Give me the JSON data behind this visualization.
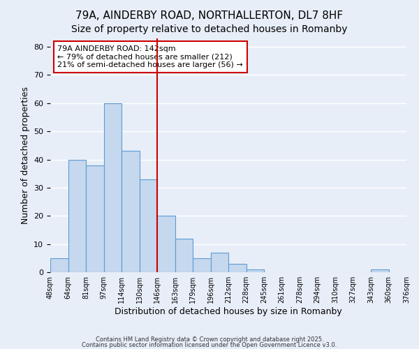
{
  "title": "79A, AINDERBY ROAD, NORTHALLERTON, DL7 8HF",
  "subtitle": "Size of property relative to detached houses in Romanby",
  "xlabel": "Distribution of detached houses by size in Romanby",
  "ylabel": "Number of detached properties",
  "bar_values": [
    5,
    40,
    38,
    60,
    43,
    33,
    20,
    12,
    5,
    7,
    3,
    1,
    0,
    0,
    0,
    0,
    0,
    0,
    1,
    0
  ],
  "bin_labels": [
    "48sqm",
    "64sqm",
    "81sqm",
    "97sqm",
    "114sqm",
    "130sqm",
    "146sqm",
    "163sqm",
    "179sqm",
    "196sqm",
    "212sqm",
    "228sqm",
    "245sqm",
    "261sqm",
    "278sqm",
    "294sqm",
    "310sqm",
    "327sqm",
    "343sqm",
    "360sqm",
    "376sqm"
  ],
  "bar_color": "#c5d8ed",
  "bar_edge_color": "#5b9bd5",
  "vline_x": 6,
  "vline_color": "#cc0000",
  "annotation_text": "79A AINDERBY ROAD: 142sqm\n← 79% of detached houses are smaller (212)\n21% of semi-detached houses are larger (56) →",
  "annotation_box_color": "#ffffff",
  "annotation_box_edge": "#cc0000",
  "ylim": [
    0,
    83
  ],
  "yticks": [
    0,
    10,
    20,
    30,
    40,
    50,
    60,
    70,
    80
  ],
  "background_color": "#e8eef8",
  "grid_color": "#ffffff",
  "footer1": "Contains HM Land Registry data © Crown copyright and database right 2025.",
  "footer2": "Contains public sector information licensed under the Open Government Licence v3.0.",
  "title_fontsize": 11,
  "subtitle_fontsize": 10,
  "xlabel_fontsize": 9,
  "ylabel_fontsize": 9,
  "tick_fontsize": 8,
  "annotation_fontsize": 8
}
